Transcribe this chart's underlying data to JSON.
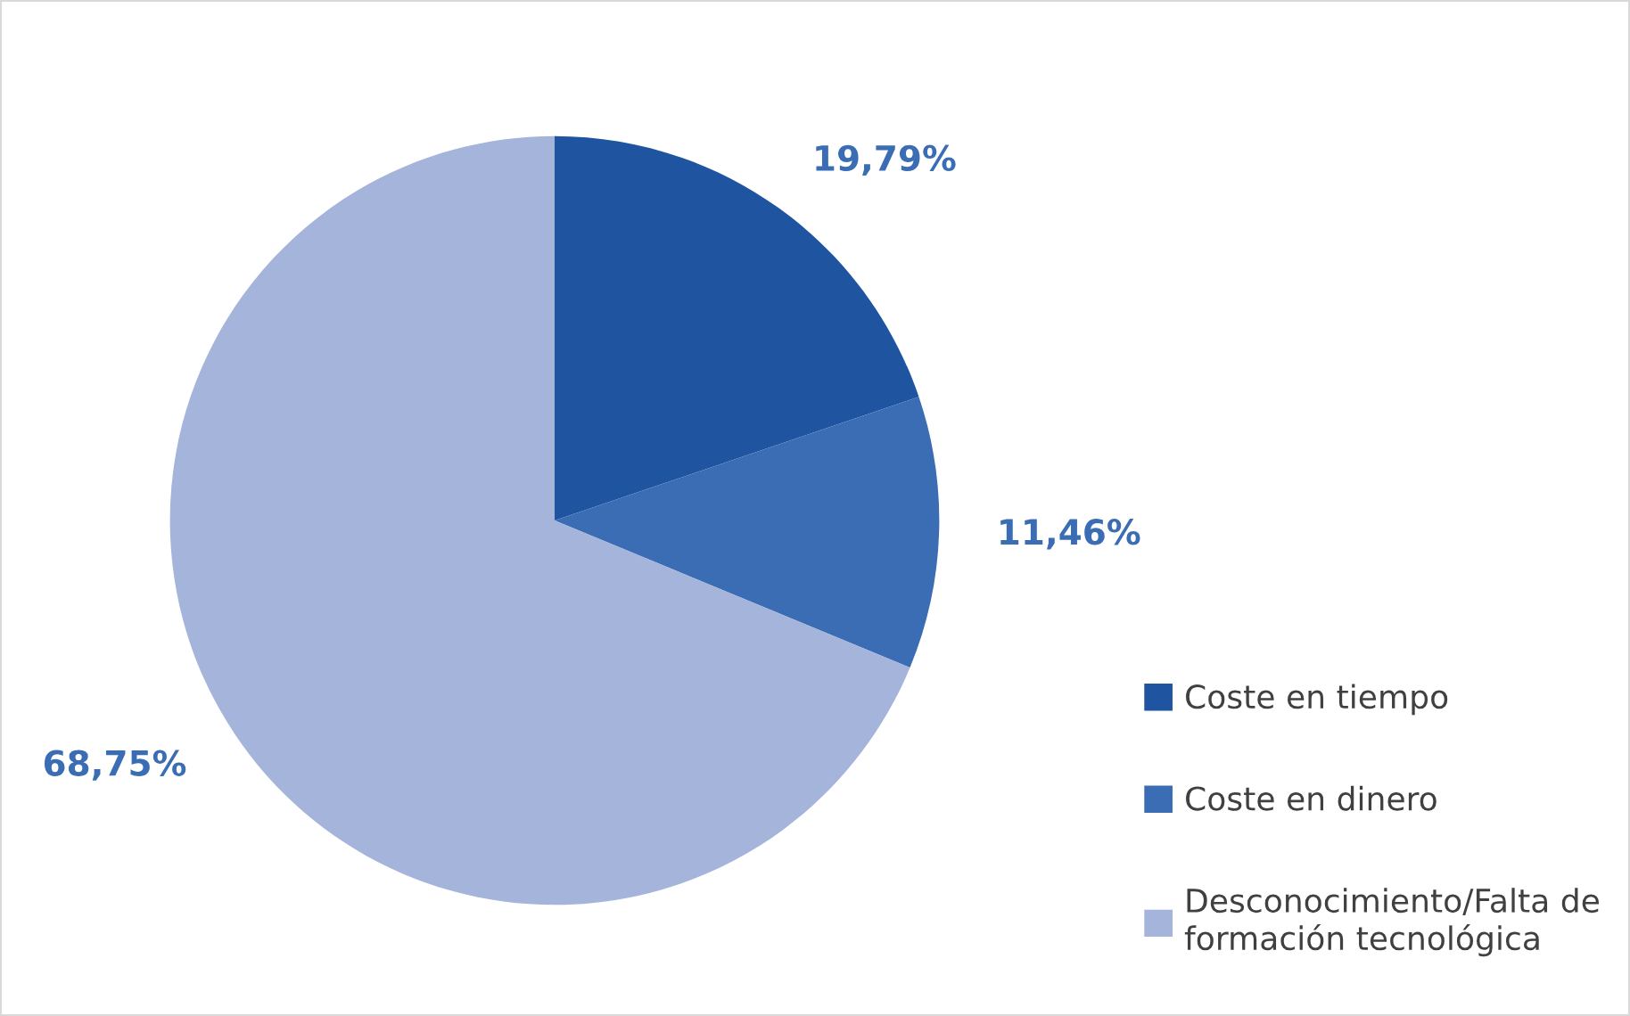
{
  "chart_data": {
    "type": "pie",
    "categories": [
      "Coste en tiempo",
      "Coste en dinero",
      "Desconocimiento/Falta de formación tecnológica"
    ],
    "values": [
      19.79,
      11.46,
      68.75
    ],
    "colors": [
      "#1f55a0",
      "#3a6db4",
      "#a5b4da"
    ],
    "value_labels": [
      "19,79%",
      "11,46%",
      "68,75%"
    ],
    "legend": "right"
  }
}
